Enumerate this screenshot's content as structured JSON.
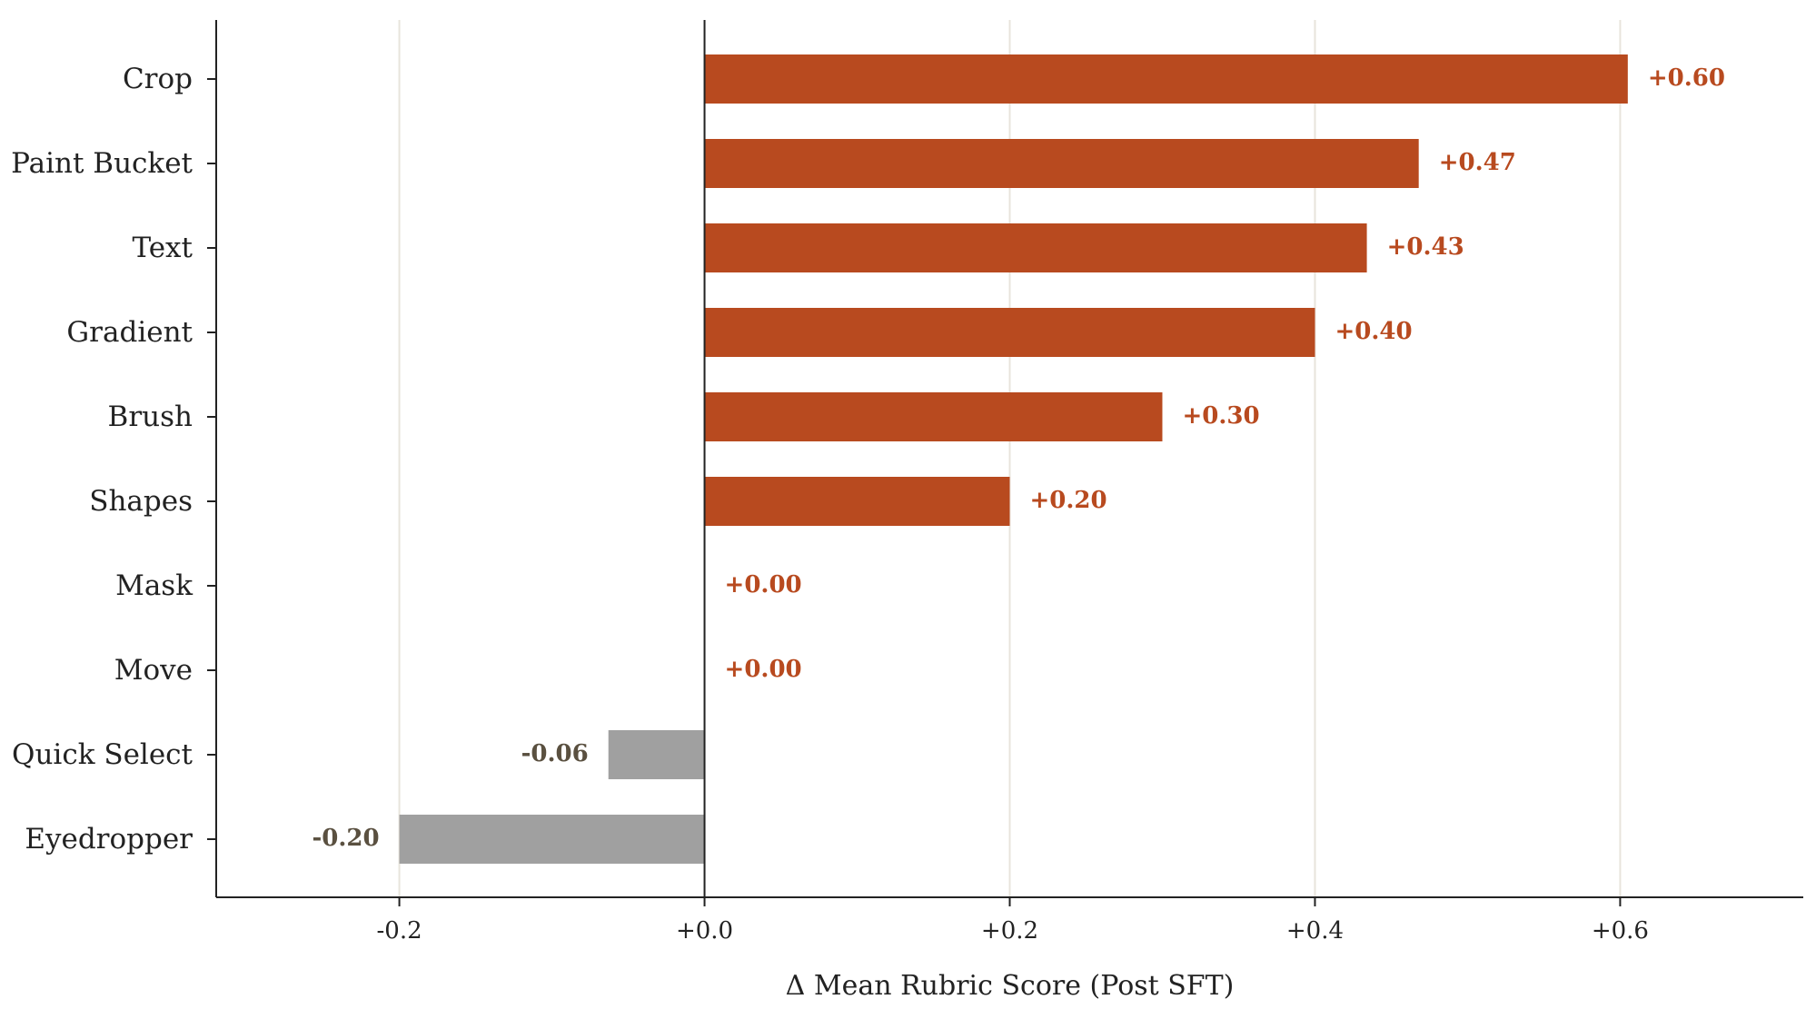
{
  "chart_data": {
    "type": "bar",
    "orientation": "horizontal",
    "categories": [
      "Crop",
      "Paint Bucket",
      "Text",
      "Gradient",
      "Brush",
      "Shapes",
      "Mask",
      "Move",
      "Quick Select",
      "Eyedropper"
    ],
    "values": [
      0.605,
      0.468,
      0.434,
      0.4,
      0.3,
      0.2,
      0.0,
      0.0,
      -0.063,
      -0.2
    ],
    "value_labels": [
      "+0.60",
      "+0.47",
      "+0.43",
      "+0.40",
      "+0.30",
      "+0.20",
      "+0.00",
      "+0.00",
      "-0.06",
      "-0.20"
    ],
    "xlabel": "Δ Mean Rubric Score  (Post SFT)",
    "ylabel": "",
    "title": "",
    "xlim": [
      -0.32,
      0.72
    ],
    "xticks": [
      -0.2,
      0.0,
      0.2,
      0.4,
      0.6
    ],
    "xtick_labels": [
      "-0.2",
      "+0.0",
      "+0.2",
      "+0.4",
      "+0.6"
    ],
    "grid": "vertical",
    "colors": {
      "positive": "#b84a1f",
      "negative": "#a0a0a0",
      "positive_label": "#b84a1f",
      "negative_label": "#5a5040",
      "grid": "#e8e4dc",
      "axis": "#222222"
    }
  }
}
